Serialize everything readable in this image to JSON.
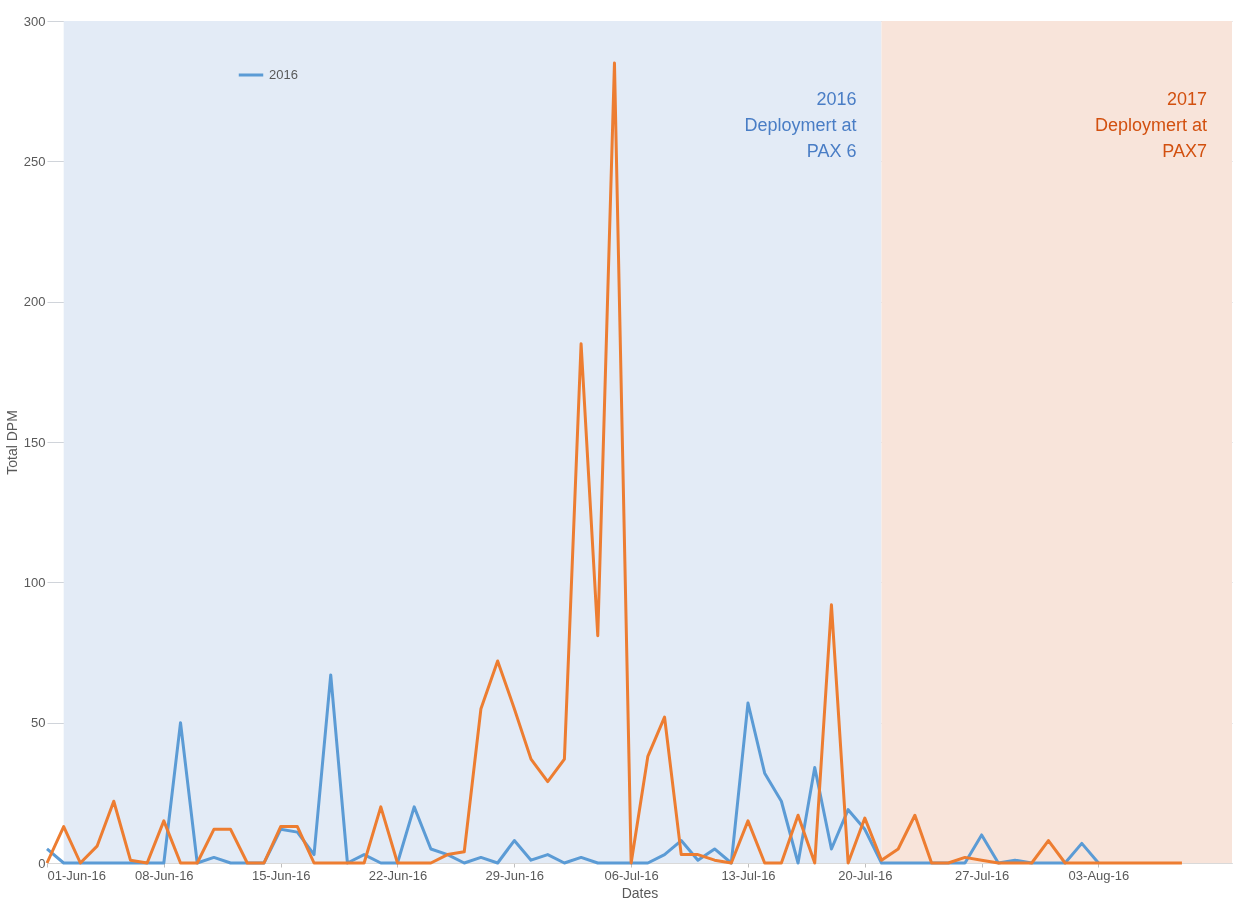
{
  "chart_data": {
    "type": "line",
    "xlabel": "Dates",
    "ylabel": "Total DPM",
    "x": [
      "2016-06-01",
      "2016-06-02",
      "2016-06-03",
      "2016-06-04",
      "2016-06-05",
      "2016-06-06",
      "2016-06-07",
      "2016-06-08",
      "2016-06-09",
      "2016-06-10",
      "2016-06-11",
      "2016-06-12",
      "2016-06-13",
      "2016-06-14",
      "2016-06-15",
      "2016-06-16",
      "2016-06-17",
      "2016-06-18",
      "2016-06-19",
      "2016-06-20",
      "2016-06-21",
      "2016-06-22",
      "2016-06-23",
      "2016-06-24",
      "2016-06-25",
      "2016-06-26",
      "2016-06-27",
      "2016-06-28",
      "2016-06-29",
      "2016-06-30",
      "2016-07-01",
      "2016-07-02",
      "2016-07-03",
      "2016-07-04",
      "2016-07-05",
      "2016-07-06",
      "2016-07-07",
      "2016-07-08",
      "2016-07-09",
      "2016-07-10",
      "2016-07-11",
      "2016-07-12",
      "2016-07-13",
      "2016-07-14",
      "2016-07-15",
      "2016-07-16",
      "2016-07-17",
      "2016-07-18",
      "2016-07-19",
      "2016-07-20",
      "2016-07-21",
      "2016-07-22",
      "2016-07-23",
      "2016-07-24",
      "2016-07-25",
      "2016-07-26",
      "2016-07-27",
      "2016-07-28",
      "2016-07-29",
      "2016-07-30",
      "2016-07-31",
      "2016-08-01",
      "2016-08-02",
      "2016-08-03",
      "2016-08-04",
      "2016-08-05",
      "2016-08-06",
      "2016-08-07",
      "2016-08-08"
    ],
    "series": [
      {
        "name": "2016",
        "color": "#5b9bd5",
        "values": [
          5,
          0,
          0,
          0,
          0,
          0,
          0,
          0,
          50,
          0,
          2,
          0,
          0,
          0,
          12,
          11,
          3,
          67,
          0,
          3,
          0,
          0,
          20,
          5,
          3,
          0,
          2,
          0,
          8,
          1,
          3,
          0,
          2,
          0,
          0,
          0,
          0,
          3,
          8,
          1,
          5,
          0,
          57,
          32,
          22,
          0,
          34,
          5,
          19,
          12,
          0,
          0,
          0,
          0,
          0,
          0,
          10,
          0,
          1,
          0,
          0,
          0,
          7,
          0,
          null,
          null,
          null,
          null,
          null
        ]
      },
      {
        "color": "#ed7d31",
        "values": [
          0,
          13,
          0,
          6,
          22,
          1,
          0,
          15,
          0,
          0,
          12,
          12,
          0,
          0,
          13,
          13,
          0,
          0,
          0,
          0,
          20,
          0,
          0,
          0,
          3,
          4,
          55,
          72,
          55,
          37,
          29,
          37,
          185,
          81,
          285,
          0,
          38,
          52,
          3,
          3,
          1,
          0,
          15,
          0,
          0,
          17,
          0,
          92,
          0,
          16,
          1,
          5,
          17,
          0,
          0,
          2,
          1,
          0,
          0,
          0,
          8,
          0,
          0,
          0,
          0,
          0,
          0,
          0,
          0
        ]
      }
    ],
    "xlim": [
      "2016-06-01",
      "2016-08-11"
    ],
    "xticks": [
      {
        "value": "2016-06-01",
        "label": "01-Jun-16"
      },
      {
        "value": "2016-06-08",
        "label": "08-Jun-16"
      },
      {
        "value": "2016-06-15",
        "label": "15-Jun-16"
      },
      {
        "value": "2016-06-22",
        "label": "22-Jun-16"
      },
      {
        "value": "2016-06-29",
        "label": "29-Jun-16"
      },
      {
        "value": "2016-07-06",
        "label": "06-Jul-16"
      },
      {
        "value": "2016-07-13",
        "label": "13-Jul-16"
      },
      {
        "value": "2016-07-20",
        "label": "20-Jul-16"
      },
      {
        "value": "2016-07-27",
        "label": "27-Jul-16"
      },
      {
        "value": "2016-08-03",
        "label": "03-Aug-16"
      }
    ],
    "ylim": [
      0,
      300
    ],
    "yticks": [
      0,
      50,
      100,
      150,
      200,
      250,
      300
    ],
    "bands": [
      {
        "axis": "x",
        "from": "2016-06-02",
        "to": "2016-07-21",
        "label": "2016\nDeploymert at\nPAX 6",
        "color": "#e3ebf6"
      },
      {
        "axis": "x",
        "from": "2016-07-21",
        "to": "2016-08-11",
        "label": "2017\nDeploymert at\nPAX7",
        "color": "#f8e4da"
      }
    ],
    "grid": "y",
    "legend": "top left",
    "line_style": "solid",
    "marker": "none"
  }
}
